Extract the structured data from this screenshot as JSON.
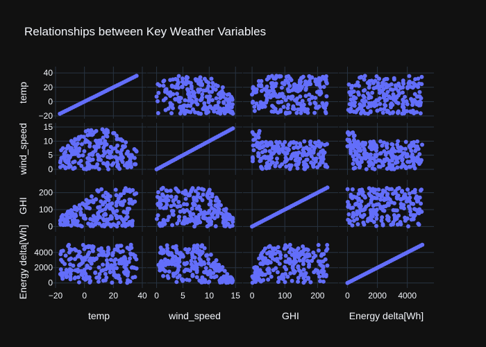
{
  "chart_data": {
    "type": "scatter",
    "title": "Relationships between Key Weather Variables",
    "variables": [
      "temp",
      "wind_speed",
      "GHI",
      "Energy delta[Wh]"
    ],
    "marker_color": "#636efa",
    "background_color": "#111111",
    "grid_color": "#283442",
    "axes": {
      "temp": {
        "range": [
          -20,
          40
        ],
        "ticks": [
          -20,
          0,
          20,
          40
        ],
        "tick_labels": [
          "−20",
          "0",
          "20",
          "40"
        ]
      },
      "wind_speed": {
        "range": [
          -1,
          15.5
        ],
        "ticks": [
          0,
          5,
          10,
          15
        ],
        "tick_labels": [
          "0",
          "5",
          "10",
          "15"
        ]
      },
      "GHI": {
        "range": [
          -15,
          250
        ],
        "ticks": [
          0,
          100,
          200
        ],
        "tick_labels": [
          "0",
          "100",
          "200"
        ]
      },
      "Energy delta[Wh]": {
        "range": [
          -300,
          5500
        ],
        "ticks": [
          0,
          2000,
          4000
        ],
        "tick_labels": [
          "0",
          "2000",
          "4000"
        ]
      }
    },
    "y_axes": {
      "temp": {
        "range": [
          -20,
          45
        ],
        "ticks": [
          -20,
          0,
          20,
          40
        ],
        "tick_labels": [
          "−20",
          "0",
          "20",
          "40"
        ]
      },
      "wind_speed": {
        "range": [
          -1,
          15.5
        ],
        "ticks": [
          0,
          5,
          10,
          15
        ],
        "tick_labels": [
          "0",
          "5",
          "10",
          "15"
        ]
      },
      "GHI": {
        "range": [
          -15,
          260
        ],
        "ticks": [
          0,
          100,
          200
        ],
        "tick_labels": [
          "0",
          "100",
          "200"
        ]
      },
      "Energy delta[Wh]": {
        "range": [
          -300,
          5800
        ],
        "ticks": [
          0,
          2000,
          4000
        ],
        "tick_labels": [
          "0",
          "2000",
          "4000"
        ]
      }
    },
    "data_extents": {
      "temp": [
        -17,
        36
      ],
      "wind_speed": [
        0,
        14.5
      ],
      "GHI": [
        0,
        230
      ],
      "Energy delta[Wh]": [
        0,
        5000
      ]
    },
    "diagonal": "identity line (each variable plotted against itself)"
  }
}
